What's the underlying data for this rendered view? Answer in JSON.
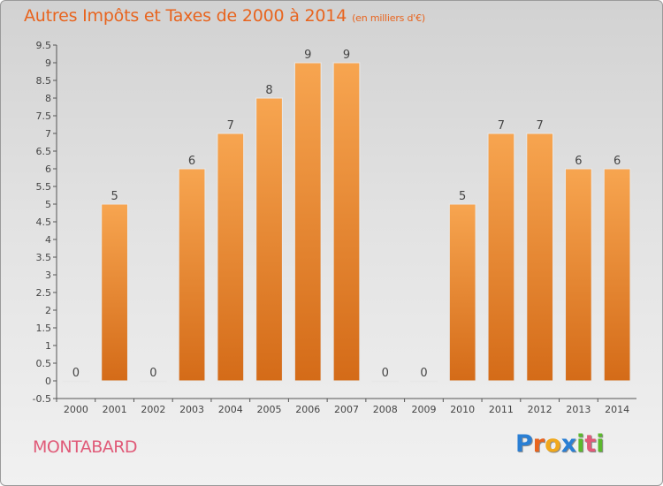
{
  "title": "Autres Impôts et Taxes de 2000 à 2014",
  "title_unit": "(en milliers d'€)",
  "commune": "MONTABARD",
  "logo": {
    "letters": [
      "P",
      "r",
      "o",
      "x",
      "i",
      "t",
      "i"
    ],
    "colors": [
      "#2a7fd4",
      "#e8641e",
      "#f0a81c",
      "#2a7fd4",
      "#5cb82e",
      "#e05a78",
      "#5cb82e"
    ]
  },
  "colors": {
    "bar_light": "#f7a550",
    "bar_dark": "#d46b18",
    "title": "#e8641e",
    "commune": "#e05a78"
  },
  "chart_data": {
    "type": "bar",
    "title": "Autres Impôts et Taxes de 2000 à 2014",
    "categories": [
      "2000",
      "2001",
      "2002",
      "2003",
      "2004",
      "2005",
      "2006",
      "2007",
      "2008",
      "2009",
      "2010",
      "2011",
      "2012",
      "2013",
      "2014"
    ],
    "values": [
      0,
      5,
      0,
      6,
      7,
      8,
      9,
      9,
      0,
      0,
      5,
      7,
      7,
      6,
      6
    ],
    "data_labels": [
      "0",
      "5",
      "0",
      "6",
      "7",
      "8",
      "9",
      "9",
      "0",
      "0",
      "5",
      "7",
      "7",
      "6",
      "6"
    ],
    "ylim": [
      -0.5,
      9.5
    ],
    "yticks": [
      "-0.5",
      "0",
      "0.5",
      "1",
      "1.5",
      "2",
      "2.5",
      "3",
      "3.5",
      "4",
      "4.5",
      "5",
      "5.5",
      "6",
      "6.5",
      "7",
      "7.5",
      "8",
      "8.5",
      "9",
      "9.5"
    ],
    "grid": false
  }
}
